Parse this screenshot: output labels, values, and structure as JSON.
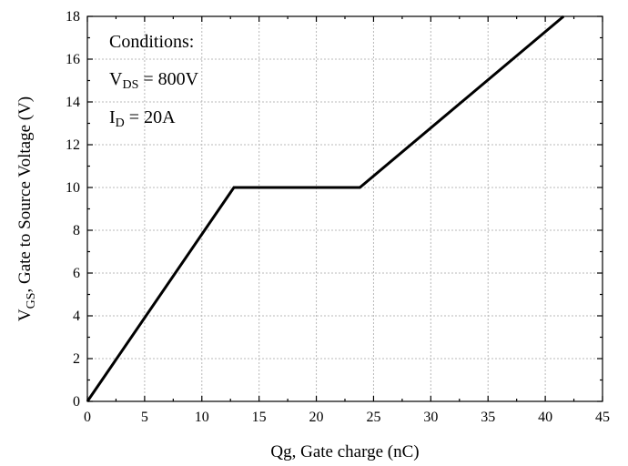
{
  "chart_data": {
    "type": "line",
    "xlabel": "Qg, Gate charge (nC)",
    "ylabel": {
      "main": "V",
      "sub": "GS",
      "rest": ", Gate to Source Voltage (V)"
    },
    "xlim": [
      0,
      45
    ],
    "ylim": [
      0,
      18
    ],
    "xticks": [
      0,
      5,
      10,
      15,
      20,
      25,
      30,
      35,
      40,
      45
    ],
    "yticks": [
      0,
      2,
      4,
      6,
      8,
      10,
      12,
      14,
      16,
      18
    ],
    "grid": true,
    "series": [
      {
        "x": [
          0,
          12.8,
          23.8,
          41.6
        ],
        "y": [
          0,
          10,
          10,
          18
        ]
      }
    ],
    "annotations": [
      {
        "main": "Conditions:",
        "sub": "",
        "rest": ""
      },
      {
        "main": "V",
        "sub": "DS",
        "rest": " = 800V"
      },
      {
        "main": "I",
        "sub": "D",
        "rest": " = 20A"
      }
    ]
  }
}
